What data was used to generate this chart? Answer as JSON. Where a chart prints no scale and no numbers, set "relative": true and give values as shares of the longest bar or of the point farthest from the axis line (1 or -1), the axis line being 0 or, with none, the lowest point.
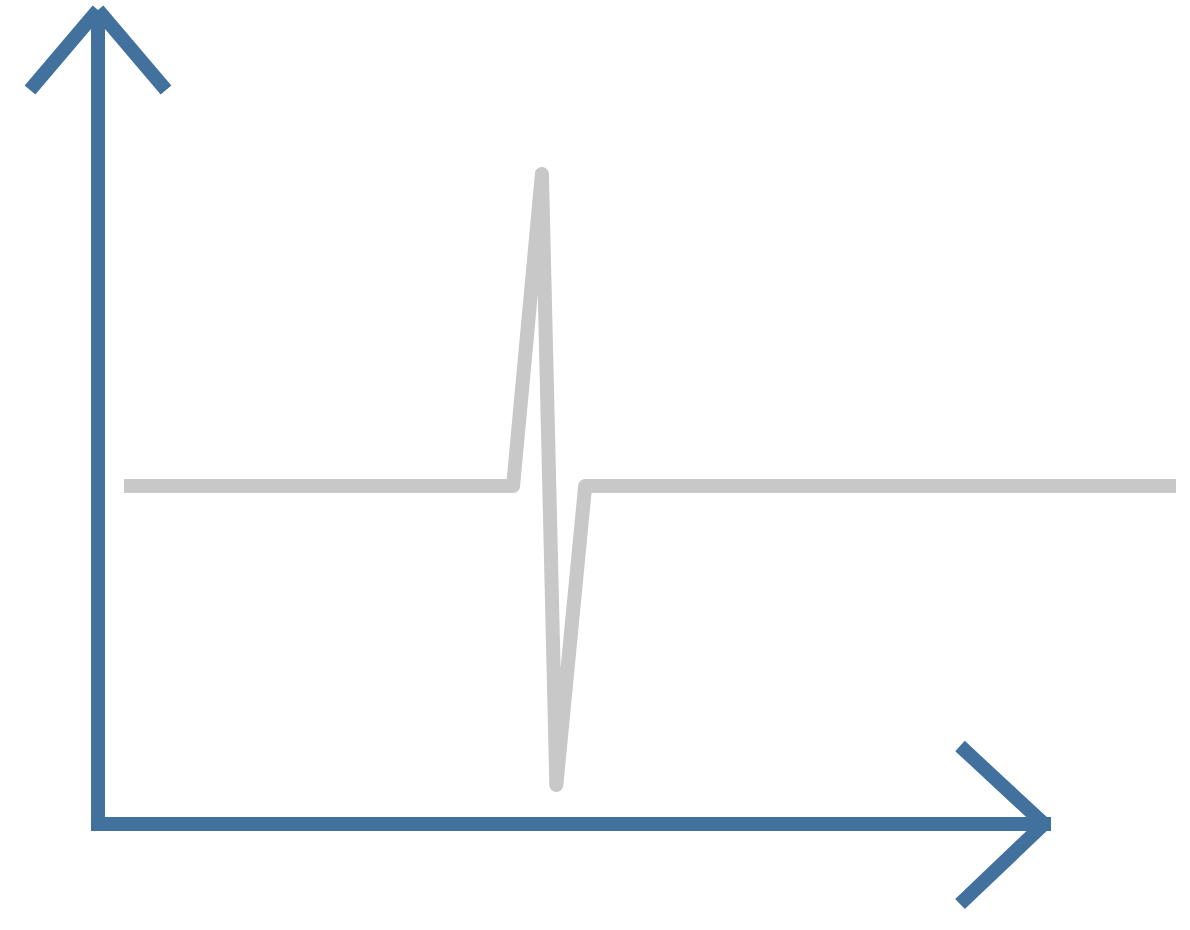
{
  "chart_data": {
    "type": "line",
    "relative": true,
    "line_style": "solid",
    "categories": [
      null,
      null,
      null,
      null,
      null,
      null,
      null,
      null,
      null,
      null,
      null,
      null,
      null,
      null,
      null,
      null,
      null,
      null,
      null,
      null,
      null,
      null,
      null,
      null,
      null,
      null,
      null,
      null,
      null,
      null,
      null,
      null,
      null,
      null,
      null,
      null,
      null,
      null,
      null,
      null,
      null,
      null,
      null,
      null,
      null,
      null,
      null,
      null,
      null,
      null,
      null,
      null,
      null,
      null,
      null,
      null,
      null,
      null,
      null,
      null,
      null,
      null,
      null,
      null,
      null,
      null,
      null,
      null,
      null,
      null,
      null,
      null,
      null,
      null
    ],
    "series": [
      {
        "color": "#c8c8c8",
        "values": [
          0.52,
          0.52,
          0.52,
          0.52,
          0.52,
          0.52,
          0.52,
          0.52,
          0.52,
          0.52,
          0.52,
          0.52,
          0.52,
          0.52,
          0.52,
          0.52,
          0.52,
          0.52,
          0.52,
          0.52,
          0.52,
          0.52,
          0.52,
          0.52,
          0.52,
          0.52,
          0.52,
          0.52,
          0.76,
          1,
          0.06,
          0.29,
          0.52,
          0.52,
          0.52,
          0.52,
          0.52,
          0.52,
          0.52,
          0.52,
          0.52,
          0.52,
          0.52,
          0.52,
          0.52,
          0.52,
          0.52,
          0.52,
          0.52,
          0.52,
          0.52,
          0.52,
          0.52,
          0.52,
          0.52,
          0.52,
          0.52,
          0.52,
          0.52,
          0.52,
          0.52,
          0.52,
          0.52,
          0.52,
          0.52,
          0.52,
          0.52,
          0.52,
          0.52,
          0.52,
          0.52,
          0.52,
          0.52,
          0.52
        ]
      }
    ]
  }
}
